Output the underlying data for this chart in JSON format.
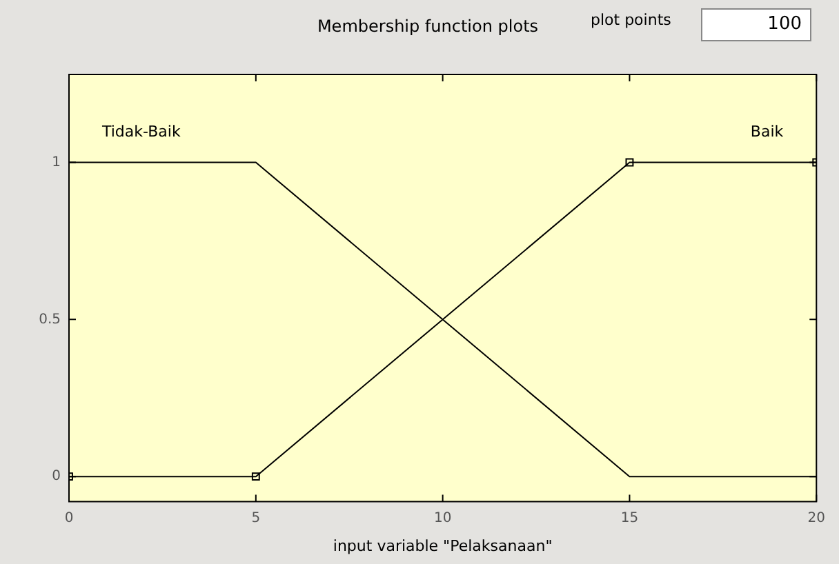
{
  "chart_data": {
    "type": "line",
    "title": "Membership function plots",
    "xlabel": "input variable \"Pelaksanaan\"",
    "annotations": [
      "plot points",
      "100"
    ],
    "x": [
      0,
      5,
      15,
      20
    ],
    "series": [
      {
        "name": "Tidak-Baik",
        "color": "#000000",
        "values": [
          1,
          1,
          0,
          0
        ],
        "marker": "none"
      },
      {
        "name": "Baik",
        "color": "#000000",
        "values": [
          0,
          0,
          1,
          1
        ],
        "marker": "square"
      }
    ],
    "xlim": [
      0,
      20
    ],
    "xticks": [
      0,
      5,
      10,
      15,
      20
    ],
    "ylim": [
      -0.08,
      1.28
    ],
    "yticks": [
      0,
      0.5,
      1
    ],
    "grid": false,
    "legend": false,
    "line_style": "solid"
  }
}
